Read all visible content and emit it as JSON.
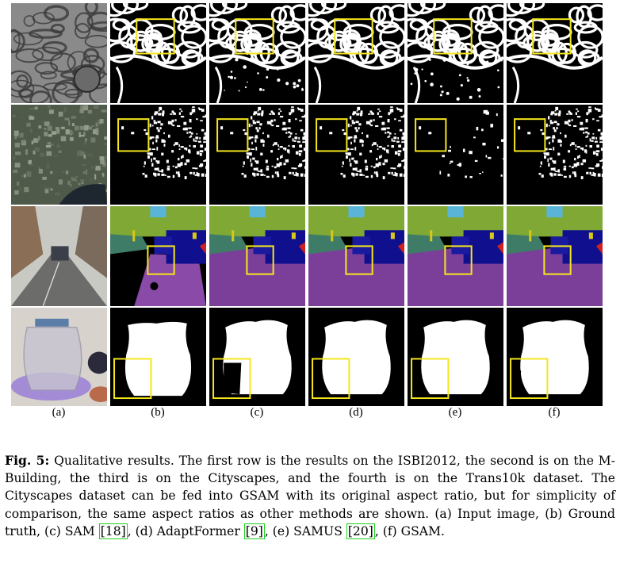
{
  "figure": {
    "column_labels": [
      "(a)",
      "(b)",
      "(c)",
      "(d)",
      "(e)",
      "(f)"
    ],
    "rows": [
      "ISBI2012",
      "M-Building",
      "Cityscapes",
      "Trans10k"
    ],
    "highlight_color": "#f4e61e"
  },
  "caption": {
    "label": "Fig. 5:",
    "text_1": " Qualitative results. The first row is the results on the ISBI2012, the second is on the M-Building, the third is on the Cityscapes, and the fourth is on the Trans10k dataset. The Cityscapes dataset can be fed into GSAM with its original aspect ratio, but for simplicity of comparison, the same aspect ratios as other methods are shown. (a) Input image, (b) Ground truth, (c) SAM ",
    "ref_1": "[18]",
    "text_2": ", (d) AdaptFormer ",
    "ref_2": "[9]",
    "text_3": ", (e) SAMUS ",
    "ref_3": "[20]",
    "text_4": ", (f) GSAM."
  }
}
